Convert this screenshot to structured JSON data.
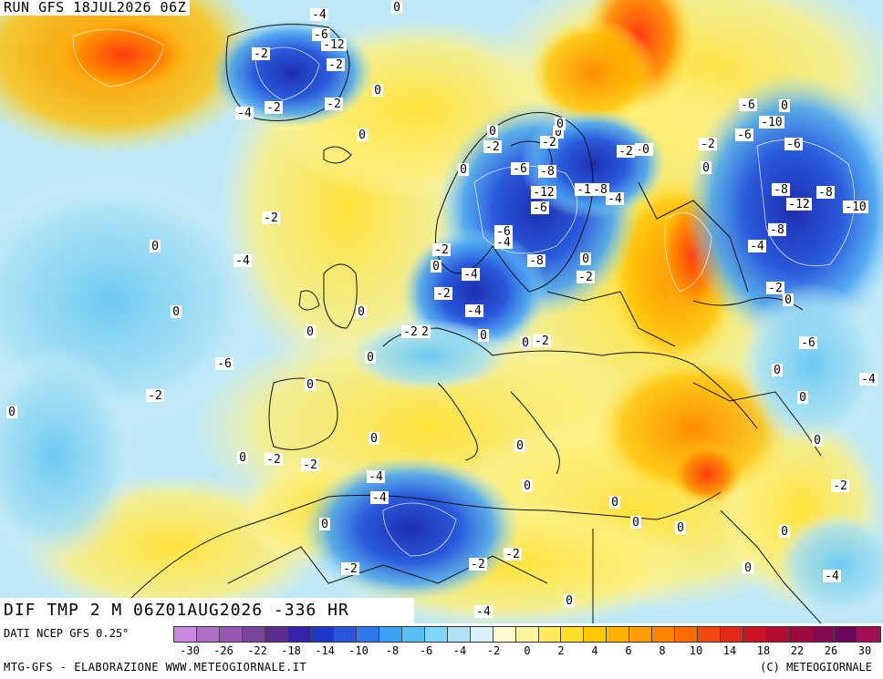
{
  "header": {
    "run_title": "RUN GFS 18JUL2026 06Z"
  },
  "map": {
    "product_title": "DIF TMP 2 M 06Z01AUG2026 -336 HR",
    "labels": [
      "-4",
      "0",
      "-6",
      "-12",
      "-2",
      "-2",
      "-4",
      "-2",
      "-2",
      "0",
      "0",
      "-2",
      "0",
      "-4",
      "0",
      "-6",
      "-2",
      "0",
      "0",
      "-2",
      "-6",
      "-8",
      "0",
      "-12",
      "-1",
      "-8",
      "-4",
      "-6",
      "-6",
      "-2",
      "-4",
      "-8",
      "-4",
      "0",
      "-2",
      "-4",
      "-2",
      "0",
      "-2",
      "0",
      "-2",
      "0",
      "0",
      "0",
      "0",
      "-2",
      "0",
      "0",
      "-2",
      "-4",
      "-4",
      "0",
      "-2",
      "-2",
      "-4",
      "0",
      "0",
      "0",
      "0",
      "0",
      "0",
      "0",
      "-2",
      "0",
      "-4",
      "0",
      "-2",
      "0",
      "-4",
      "0",
      "-6",
      "-10",
      "-2",
      "-6",
      "-6",
      "-8",
      "-8",
      "-12",
      "-10",
      "-8",
      "-4",
      "-2",
      "-6",
      "0",
      "-4",
      "-2",
      "0",
      "0",
      "-2",
      "0",
      "0",
      "-2",
      "0",
      "0"
    ]
  },
  "legend": {
    "colors": [
      "#cc88dd",
      "#b070c8",
      "#9858b4",
      "#7c44a0",
      "#5a2c90",
      "#3224a8",
      "#2038c8",
      "#2a54dc",
      "#2e78ec",
      "#3ea0f4",
      "#56c0f4",
      "#7ed6f4",
      "#aee4f6",
      "#d8f2f8",
      "#fffbd0",
      "#fff49c",
      "#ffe85a",
      "#ffdc28",
      "#ffc800",
      "#ffb400",
      "#ff9c00",
      "#ff8400",
      "#ff6a00",
      "#f24a10",
      "#e02818",
      "#cc1424",
      "#b40c30",
      "#9c0840",
      "#860850",
      "#6c0858",
      "#a01050"
    ],
    "tick_labels": [
      "-30",
      "-26",
      "-22",
      "-18",
      "-14",
      "-10",
      "-8",
      "-6",
      "-4",
      "-2",
      "0",
      "2",
      "4",
      "6",
      "8",
      "10",
      "14",
      "18",
      "22",
      "26",
      "30"
    ]
  },
  "footer": {
    "source": "DATI NCEP GFS 0.25°",
    "credit_left": "MTG-GFS - ELABORAZIONE WWW.METEOGIORNALE.IT",
    "credit_right": "(C) METEOGIORNALE"
  }
}
